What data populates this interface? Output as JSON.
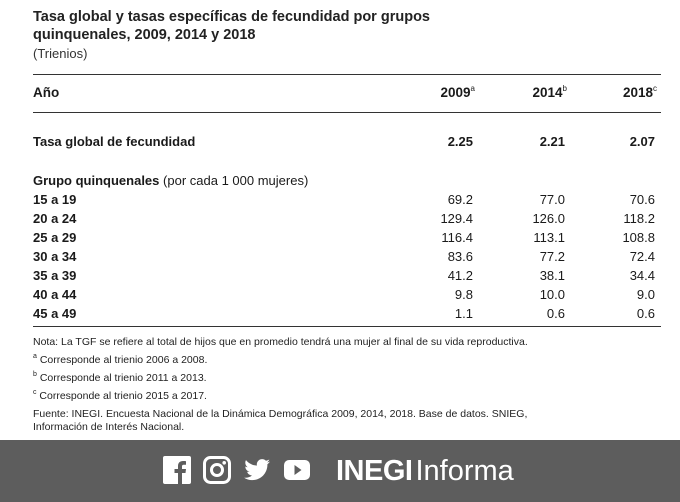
{
  "title": {
    "line1": "Tasa global y tasas específicas de fecundidad por grupos",
    "line2": "quinquenales, 2009, 2014 y 2018",
    "subtitle": "(Trienios)"
  },
  "header": {
    "label": "Año",
    "cols": [
      {
        "year": "2009",
        "sup": "a"
      },
      {
        "year": "2014",
        "sup": "b"
      },
      {
        "year": "2018",
        "sup": "c"
      }
    ]
  },
  "tgf": {
    "label": "Tasa global de fecundidad",
    "values": [
      "2.25",
      "2.21",
      "2.07"
    ]
  },
  "group": {
    "title": "Grupo quinquenales",
    "subtitle": "(por cada 1 000 mujeres)"
  },
  "rows": [
    {
      "label": "15 a 19",
      "values": [
        "69.2",
        "77.0",
        "70.6"
      ]
    },
    {
      "label": "20 a 24",
      "values": [
        "129.4",
        "126.0",
        "118.2"
      ]
    },
    {
      "label": "25 a 29",
      "values": [
        "116.4",
        "113.1",
        "108.8"
      ]
    },
    {
      "label": "30 a 34",
      "values": [
        "83.6",
        "77.2",
        "72.4"
      ]
    },
    {
      "label": "35 a 39",
      "values": [
        "41.2",
        "38.1",
        "34.4"
      ]
    },
    {
      "label": "40 a 44",
      "values": [
        "9.8",
        "10.0",
        "9.0"
      ]
    },
    {
      "label": "45 a 49",
      "values": [
        "1.1",
        "0.6",
        "0.6"
      ]
    }
  ],
  "notes": {
    "main": "Nota: La TGF se refiere al total de hijos que en promedio tendrá una mujer al final de su vida reproductiva.",
    "a": {
      "sup": "a",
      "text": " Corresponde al trienio 2006 a 2008."
    },
    "b": {
      "sup": "b",
      "text": " Corresponde al trienio 2011 a 2013."
    },
    "c": {
      "sup": "c",
      "text": " Corresponde al trienio 2015 a 2017."
    },
    "source_line1": "Fuente: INEGI. Encuesta Nacional de la Dinámica Demográfica 2009, 2014, 2018. Base de datos. SNIEG,",
    "source_line2": "Información de Interés Nacional."
  },
  "footer": {
    "background": "#5d5d5d",
    "icons": [
      "facebook-icon",
      "instagram-icon",
      "twitter-icon",
      "youtube-icon"
    ],
    "brand_strong": "INEGI",
    "brand_light": "Informa"
  }
}
